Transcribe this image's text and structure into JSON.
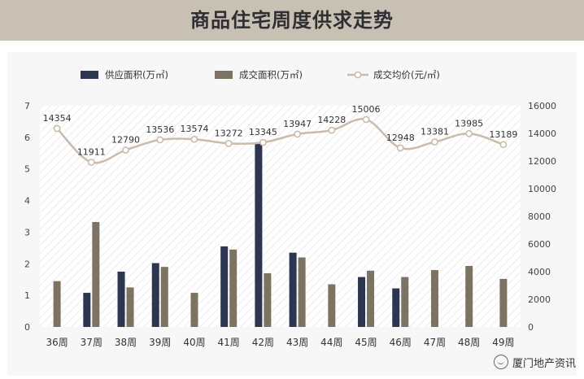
{
  "page": {
    "title": "商品住宅周度供求走势",
    "watermark": "厦门地产资讯",
    "colors": {
      "banner": "#c9c0b4",
      "supply": "#2d3650",
      "deal": "#7d7363",
      "price_line": "#c9bcaa",
      "price_marker_fill": "#ffffff"
    }
  },
  "chart_data": {
    "type": "bar",
    "categories": [
      "36周",
      "37周",
      "38周",
      "39周",
      "40周",
      "41周",
      "42周",
      "43周",
      "44周",
      "45周",
      "46周",
      "47周",
      "48周",
      "49周"
    ],
    "series": [
      {
        "name": "供应面积(万㎡)",
        "type": "bar",
        "axis": "left",
        "values": [
          null,
          1.08,
          1.75,
          2.02,
          null,
          2.55,
          5.8,
          2.35,
          null,
          1.58,
          1.22,
          null,
          null,
          null
        ]
      },
      {
        "name": "成交面积(万㎡)",
        "type": "bar",
        "axis": "left",
        "values": [
          1.45,
          3.32,
          1.25,
          1.9,
          1.08,
          2.45,
          1.7,
          2.2,
          1.35,
          1.78,
          1.58,
          1.8,
          1.93,
          1.52
        ]
      },
      {
        "name": "成交均价(元/㎡)",
        "type": "line",
        "axis": "right",
        "values": [
          14354,
          11911,
          12790,
          13536,
          13574,
          13272,
          13345,
          13947,
          14228,
          15006,
          12948,
          13381,
          13985,
          13189
        ]
      }
    ],
    "left_axis": {
      "min": 0,
      "max": 7,
      "ticks": [
        "0",
        "1",
        "2",
        "3",
        "4",
        "5",
        "6",
        "7"
      ]
    },
    "right_axis": {
      "min": 0,
      "max": 16000,
      "ticks": [
        "0",
        "2000",
        "4000",
        "6000",
        "8000",
        "10000",
        "12000",
        "14000",
        "16000"
      ]
    },
    "legend_position": "top",
    "grid": false
  }
}
